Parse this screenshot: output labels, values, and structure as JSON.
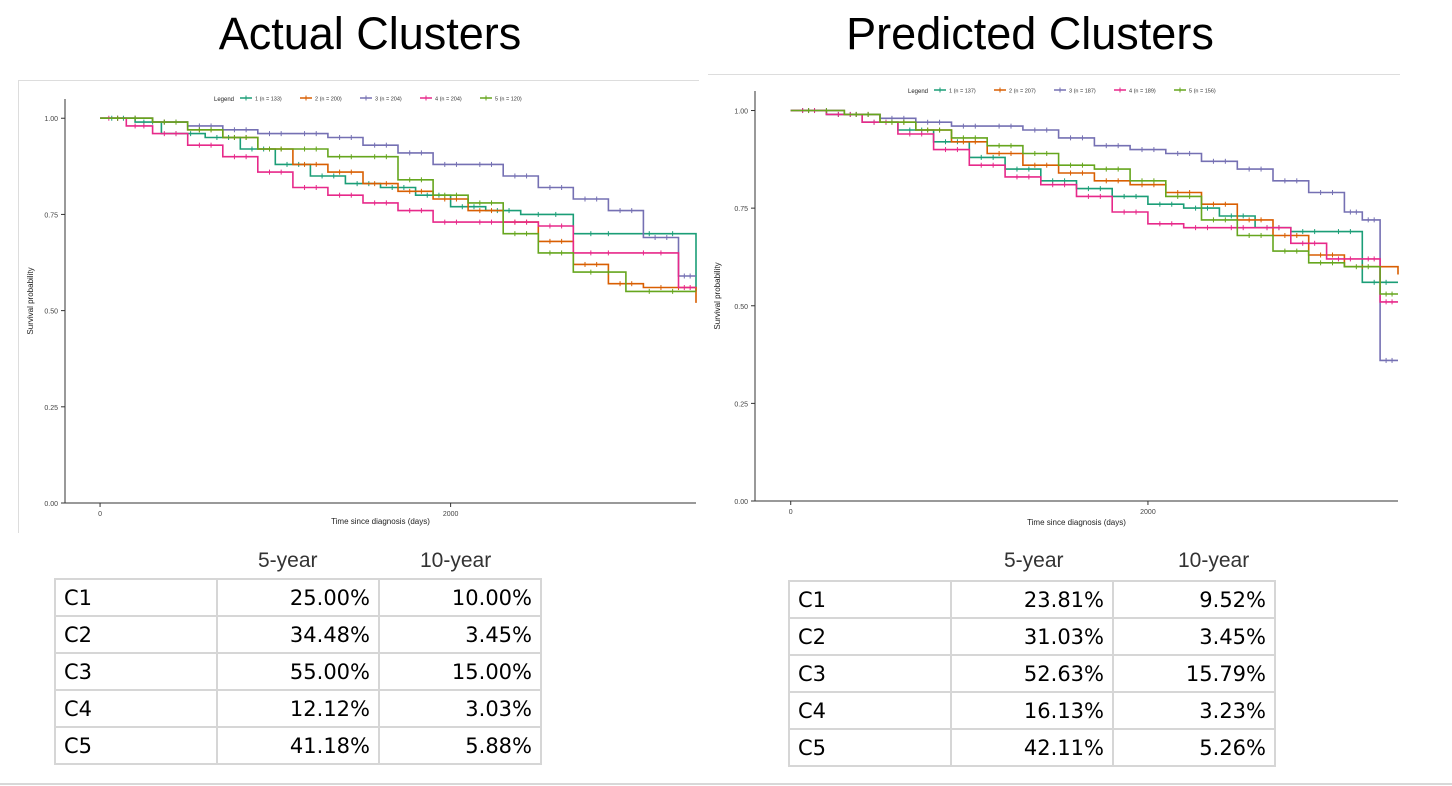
{
  "titles": {
    "left": "Actual Clusters",
    "right": "Predicted Clusters"
  },
  "chart_data": [
    {
      "type": "line",
      "title": "Actual Clusters",
      "xlabel": "Time since diagnosis (days)",
      "ylabel": "Survival probability",
      "xlim": [
        -200,
        3400
      ],
      "ylim": [
        0,
        1.05
      ],
      "x_ticks": [
        0,
        2000
      ],
      "y_ticks": [
        "0.00",
        "0.25",
        "0.50",
        "0.75",
        "1.00"
      ],
      "legend_title": "Legend",
      "legend_position": "top",
      "grid": false,
      "series": [
        {
          "name": "1 (n = 133)",
          "color": "#1b9e77",
          "x": [
            0,
            200,
            350,
            600,
            800,
            1000,
            1200,
            1400,
            1600,
            1800,
            2000,
            2200,
            2400,
            2700,
            3000,
            3400
          ],
          "y": [
            1.0,
            0.99,
            0.96,
            0.95,
            0.92,
            0.88,
            0.85,
            0.83,
            0.82,
            0.8,
            0.77,
            0.76,
            0.75,
            0.7,
            0.7,
            0.55
          ]
        },
        {
          "name": "2 (n = 200)",
          "color": "#d95f02",
          "x": [
            0,
            300,
            500,
            700,
            900,
            1100,
            1300,
            1500,
            1700,
            1900,
            2100,
            2300,
            2500,
            2700,
            2900,
            3100,
            3400
          ],
          "y": [
            1.0,
            0.99,
            0.97,
            0.95,
            0.92,
            0.88,
            0.86,
            0.83,
            0.81,
            0.79,
            0.76,
            0.73,
            0.68,
            0.62,
            0.57,
            0.56,
            0.52
          ]
        },
        {
          "name": "3 (n = 204)",
          "color": "#7570b3",
          "x": [
            0,
            300,
            500,
            700,
            900,
            1100,
            1300,
            1500,
            1700,
            1900,
            2100,
            2300,
            2500,
            2700,
            2900,
            3100,
            3300,
            3400
          ],
          "y": [
            1.0,
            0.99,
            0.98,
            0.97,
            0.96,
            0.96,
            0.95,
            0.93,
            0.91,
            0.88,
            0.88,
            0.85,
            0.82,
            0.79,
            0.76,
            0.69,
            0.59,
            0.59
          ]
        },
        {
          "name": "4 (n = 204)",
          "color": "#e7298a",
          "x": [
            0,
            150,
            300,
            500,
            700,
            900,
            1100,
            1300,
            1500,
            1700,
            1900,
            2100,
            2300,
            2500,
            2700,
            3000,
            3300,
            3400
          ],
          "y": [
            1.0,
            0.98,
            0.96,
            0.93,
            0.9,
            0.86,
            0.82,
            0.8,
            0.78,
            0.76,
            0.73,
            0.73,
            0.73,
            0.72,
            0.65,
            0.65,
            0.56,
            0.56
          ]
        },
        {
          "name": "5 (n = 120)",
          "color": "#66a61e",
          "x": [
            0,
            300,
            500,
            700,
            900,
            1100,
            1300,
            1500,
            1700,
            1900,
            2100,
            2300,
            2500,
            2700,
            3000,
            3400
          ],
          "y": [
            1.0,
            0.99,
            0.97,
            0.95,
            0.92,
            0.92,
            0.9,
            0.9,
            0.84,
            0.8,
            0.78,
            0.7,
            0.65,
            0.6,
            0.55,
            0.55
          ]
        }
      ]
    },
    {
      "type": "line",
      "title": "Predicted Clusters",
      "xlabel": "Time since diagnosis (days)",
      "ylabel": "Survival probability",
      "xlim": [
        -200,
        3400
      ],
      "ylim": [
        0,
        1.05
      ],
      "x_ticks": [
        0,
        2000
      ],
      "y_ticks": [
        "0.00",
        "0.25",
        "0.50",
        "0.75",
        "1.00"
      ],
      "legend_title": "Legend",
      "legend_position": "top",
      "grid": false,
      "series": [
        {
          "name": "1 (n = 137)",
          "color": "#1b9e77",
          "x": [
            0,
            200,
            400,
            600,
            800,
            1000,
            1200,
            1400,
            1600,
            1800,
            2000,
            2200,
            2400,
            2600,
            2800,
            3000,
            3200,
            3400
          ],
          "y": [
            1.0,
            0.99,
            0.97,
            0.95,
            0.92,
            0.88,
            0.85,
            0.82,
            0.8,
            0.78,
            0.76,
            0.75,
            0.73,
            0.7,
            0.69,
            0.69,
            0.56,
            0.56
          ]
        },
        {
          "name": "2 (n = 207)",
          "color": "#d95f02",
          "x": [
            0,
            300,
            500,
            700,
            900,
            1100,
            1300,
            1500,
            1700,
            1900,
            2100,
            2300,
            2500,
            2700,
            2900,
            3100,
            3400
          ],
          "y": [
            1.0,
            0.99,
            0.97,
            0.95,
            0.92,
            0.89,
            0.86,
            0.84,
            0.82,
            0.81,
            0.79,
            0.76,
            0.72,
            0.68,
            0.63,
            0.6,
            0.58
          ]
        },
        {
          "name": "3 (n = 187)",
          "color": "#7570b3",
          "x": [
            0,
            300,
            500,
            700,
            900,
            1100,
            1300,
            1500,
            1700,
            1900,
            2100,
            2300,
            2500,
            2700,
            2900,
            3100,
            3200,
            3300,
            3400
          ],
          "y": [
            1.0,
            0.99,
            0.98,
            0.97,
            0.96,
            0.96,
            0.95,
            0.93,
            0.91,
            0.9,
            0.89,
            0.87,
            0.85,
            0.82,
            0.79,
            0.74,
            0.72,
            0.36,
            0.36
          ]
        },
        {
          "name": "4 (n = 189)",
          "color": "#e7298a",
          "x": [
            0,
            200,
            400,
            600,
            800,
            1000,
            1200,
            1400,
            1600,
            1800,
            2000,
            2200,
            2400,
            2600,
            2800,
            3000,
            3200,
            3300,
            3400
          ],
          "y": [
            1.0,
            0.99,
            0.97,
            0.94,
            0.9,
            0.86,
            0.83,
            0.81,
            0.78,
            0.74,
            0.71,
            0.7,
            0.7,
            0.7,
            0.66,
            0.62,
            0.62,
            0.51,
            0.51
          ]
        },
        {
          "name": "5 (n = 156)",
          "color": "#66a61e",
          "x": [
            0,
            300,
            500,
            700,
            900,
            1100,
            1300,
            1500,
            1700,
            1900,
            2100,
            2300,
            2500,
            2700,
            2900,
            3100,
            3300,
            3400
          ],
          "y": [
            1.0,
            0.99,
            0.97,
            0.95,
            0.93,
            0.91,
            0.89,
            0.86,
            0.85,
            0.82,
            0.78,
            0.72,
            0.68,
            0.64,
            0.61,
            0.6,
            0.53,
            0.53
          ]
        }
      ]
    }
  ],
  "tables": {
    "headers": [
      "5-year",
      "10-year"
    ],
    "left": [
      {
        "cluster": "C1",
        "y5": "25.00%",
        "y10": "10.00%"
      },
      {
        "cluster": "C2",
        "y5": "34.48%",
        "y10": "3.45%"
      },
      {
        "cluster": "C3",
        "y5": "55.00%",
        "y10": "15.00%"
      },
      {
        "cluster": "C4",
        "y5": "12.12%",
        "y10": "3.03%"
      },
      {
        "cluster": "C5",
        "y5": "41.18%",
        "y10": "5.88%"
      }
    ],
    "right": [
      {
        "cluster": "C1",
        "y5": "23.81%",
        "y10": "9.52%"
      },
      {
        "cluster": "C2",
        "y5": "31.03%",
        "y10": "3.45%"
      },
      {
        "cluster": "C3",
        "y5": "52.63%",
        "y10": "15.79%"
      },
      {
        "cluster": "C4",
        "y5": "16.13%",
        "y10": "3.23%"
      },
      {
        "cluster": "C5",
        "y5": "42.11%",
        "y10": "5.26%"
      }
    ]
  }
}
